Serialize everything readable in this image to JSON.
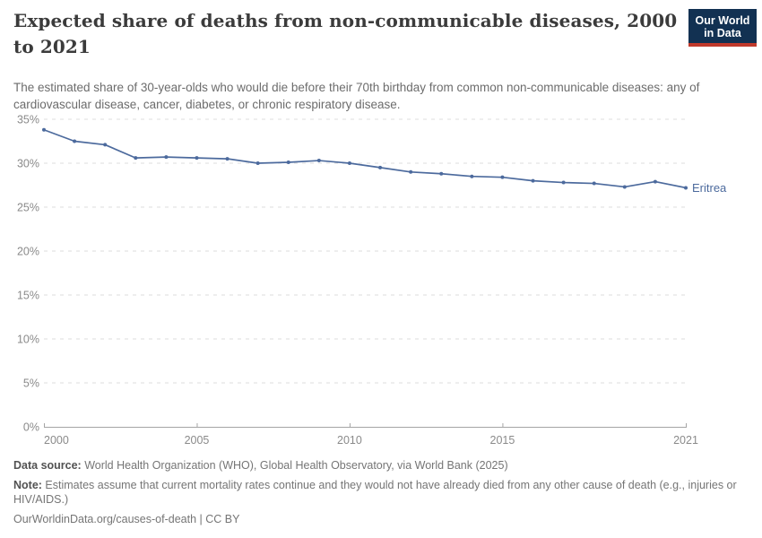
{
  "header": {
    "title": "Expected share of deaths from non-communicable diseases, 2000 to 2021",
    "subtitle": "The estimated share of 30-year-olds who would die before their 70th birthday from common non-communicable diseases: any of cardiovascular disease, cancer, diabetes, or chronic respiratory disease.",
    "logo": {
      "line1": "Our World",
      "line2": "in Data",
      "bg_color": "#123152",
      "accent_color": "#C0392B"
    }
  },
  "chart_data": {
    "type": "line",
    "title": "Expected share of deaths from non-communicable diseases, 2000 to 2021",
    "series": [
      {
        "name": "Eritrea",
        "color": "#4C6A9D",
        "x": [
          2000,
          2001,
          2002,
          2003,
          2004,
          2005,
          2006,
          2007,
          2008,
          2009,
          2010,
          2011,
          2012,
          2013,
          2014,
          2015,
          2016,
          2017,
          2018,
          2019,
          2020,
          2021
        ],
        "values": [
          33.8,
          32.5,
          32.1,
          30.6,
          30.7,
          30.6,
          30.5,
          30.0,
          30.1,
          30.3,
          30.0,
          29.5,
          29.0,
          28.8,
          28.5,
          28.4,
          28.0,
          27.8,
          27.7,
          27.3,
          27.9,
          27.2
        ]
      }
    ],
    "xlim": [
      2000,
      2021
    ],
    "ylim": [
      0,
      35
    ],
    "x_ticks": [
      2000,
      2005,
      2010,
      2015,
      2021
    ],
    "y_ticks": [
      0,
      5,
      10,
      15,
      20,
      25,
      30,
      35
    ],
    "y_unit": "%",
    "grid": "horizontal-dashed",
    "legend_position": "end-of-line-label",
    "grid_color": "#dddddd",
    "axis_color": "#a5a5a5",
    "tick_label_color": "#8a8a8a"
  },
  "footer": {
    "source_label": "Data source:",
    "source_text": " World Health Organization (WHO), Global Health Observatory, via World Bank (2025)",
    "note_label": "Note:",
    "note_text": " Estimates assume that current mortality rates continue and they would not have already died from any other cause of death (e.g., injuries or HIV/AIDS.)",
    "citation": "OurWorldinData.org/causes-of-death | CC BY"
  }
}
